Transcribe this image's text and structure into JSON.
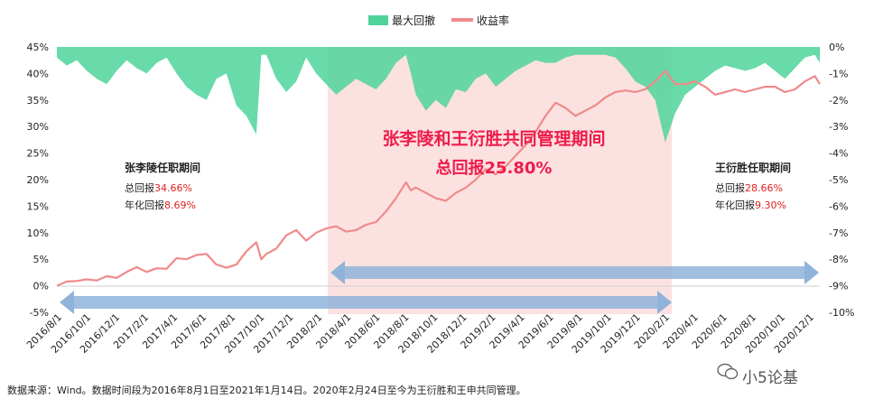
{
  "chart_data": {
    "type": "area+line",
    "legend": [
      {
        "label": "最大回撤",
        "color": "#4fd39a",
        "kind": "area"
      },
      {
        "label": "收益率",
        "color": "#f08a8a",
        "kind": "line"
      }
    ],
    "legend_position": "top-center",
    "y_left": {
      "min": -5,
      "max": 45,
      "ticks": [
        "-5%",
        "0%",
        "5%",
        "10%",
        "15%",
        "20%",
        "25%",
        "30%",
        "35%",
        "40%",
        "45%"
      ]
    },
    "y_right": {
      "min": -10,
      "max": 0,
      "ticks": [
        "0%",
        "-1%",
        "-2%",
        "-3%",
        "-4%",
        "-5%",
        "-6%",
        "-7%",
        "-8%",
        "-9%",
        "-10%"
      ]
    },
    "x_ticks": [
      "2016/8/1",
      "2016/10/1",
      "2016/12/1",
      "2017/2/1",
      "2017/4/1",
      "2017/6/1",
      "2017/8/1",
      "2017/10/1",
      "2017/12/1",
      "2018/2/1",
      "2018/4/1",
      "2018/6/1",
      "2018/8/1",
      "2018/10/1",
      "2018/12/1",
      "2019/2/1",
      "2019/4/1",
      "2019/6/1",
      "2019/8/1",
      "2019/10/1",
      "2019/12/1",
      "2020/2/1",
      "2020/4/1",
      "2020/6/1",
      "2020/8/1",
      "2020/10/1",
      "2020/12/1"
    ],
    "return_series": [
      [
        0,
        0.0
      ],
      [
        1,
        0.8
      ],
      [
        2,
        0.9
      ],
      [
        3,
        1.2
      ],
      [
        4,
        1.0
      ],
      [
        5,
        1.8
      ],
      [
        6,
        1.5
      ],
      [
        7,
        2.6
      ],
      [
        8,
        3.5
      ],
      [
        9,
        2.6
      ],
      [
        10,
        3.3
      ],
      [
        11,
        3.2
      ],
      [
        12,
        5.2
      ],
      [
        13,
        5.0
      ],
      [
        14,
        5.8
      ],
      [
        15,
        6.0
      ],
      [
        16,
        4.0
      ],
      [
        17,
        3.4
      ],
      [
        18,
        4.0
      ],
      [
        19,
        6.5
      ],
      [
        20,
        8.2
      ],
      [
        20.5,
        5.0
      ],
      [
        21,
        6.0
      ],
      [
        22,
        7.0
      ],
      [
        23,
        9.5
      ],
      [
        24,
        10.5
      ],
      [
        25,
        8.5
      ],
      [
        26,
        10.0
      ],
      [
        27,
        10.8
      ],
      [
        28,
        11.2
      ],
      [
        29,
        10.2
      ],
      [
        30,
        10.5
      ],
      [
        31,
        11.5
      ],
      [
        32,
        12.0
      ],
      [
        33,
        14.0
      ],
      [
        34,
        16.5
      ],
      [
        35,
        19.5
      ],
      [
        35.5,
        18.0
      ],
      [
        36,
        18.5
      ],
      [
        37,
        17.5
      ],
      [
        38,
        16.5
      ],
      [
        39,
        16.0
      ],
      [
        40,
        17.5
      ],
      [
        41,
        18.5
      ],
      [
        42,
        20.0
      ],
      [
        43,
        22.0
      ],
      [
        43.5,
        21.5
      ],
      [
        44,
        21.0
      ],
      [
        45,
        22.5
      ],
      [
        46,
        24.5
      ],
      [
        47,
        26.5
      ],
      [
        48,
        29.0
      ],
      [
        49,
        32.0
      ],
      [
        50,
        34.5
      ],
      [
        51,
        33.5
      ],
      [
        52,
        32.0
      ],
      [
        53,
        33.0
      ],
      [
        54,
        34.0
      ],
      [
        55,
        35.5
      ],
      [
        56,
        36.5
      ],
      [
        57,
        36.8
      ],
      [
        58,
        36.5
      ],
      [
        59,
        37.0
      ],
      [
        60,
        38.5
      ],
      [
        61,
        40.5
      ],
      [
        62,
        38.0
      ],
      [
        63,
        38.0
      ],
      [
        64,
        38.5
      ],
      [
        65,
        37.5
      ],
      [
        66,
        36.0
      ],
      [
        67,
        36.5
      ],
      [
        68,
        37.0
      ],
      [
        69,
        36.5
      ],
      [
        70,
        37.0
      ],
      [
        71,
        37.5
      ],
      [
        72,
        37.5
      ],
      [
        73,
        36.5
      ],
      [
        74,
        37.0
      ],
      [
        75,
        38.5
      ],
      [
        76,
        39.5
      ],
      [
        76.5,
        38.0
      ]
    ],
    "drawdown_series": [
      [
        0,
        -0.4
      ],
      [
        1,
        -0.7
      ],
      [
        2,
        -0.5
      ],
      [
        3,
        -0.9
      ],
      [
        4,
        -1.2
      ],
      [
        5,
        -1.4
      ],
      [
        6,
        -0.9
      ],
      [
        7,
        -0.5
      ],
      [
        8,
        -0.8
      ],
      [
        9,
        -1.0
      ],
      [
        10,
        -0.6
      ],
      [
        11,
        -0.4
      ],
      [
        12,
        -1.0
      ],
      [
        13,
        -1.5
      ],
      [
        14,
        -1.8
      ],
      [
        15,
        -2.0
      ],
      [
        16,
        -1.2
      ],
      [
        17,
        -1.0
      ],
      [
        18,
        -2.2
      ],
      [
        19,
        -2.6
      ],
      [
        20,
        -3.3
      ],
      [
        20.5,
        -0.3
      ],
      [
        21,
        -0.3
      ],
      [
        22,
        -1.2
      ],
      [
        23,
        -1.7
      ],
      [
        24,
        -1.3
      ],
      [
        25,
        -0.4
      ],
      [
        26,
        -1.0
      ],
      [
        27,
        -1.4
      ],
      [
        28,
        -1.8
      ],
      [
        29,
        -1.5
      ],
      [
        30,
        -1.2
      ],
      [
        31,
        -1.4
      ],
      [
        32,
        -1.6
      ],
      [
        33,
        -1.2
      ],
      [
        34,
        -0.6
      ],
      [
        35,
        -0.3
      ],
      [
        35.5,
        -1.0
      ],
      [
        36,
        -1.8
      ],
      [
        37,
        -2.4
      ],
      [
        38,
        -2.0
      ],
      [
        39,
        -2.3
      ],
      [
        40,
        -1.6
      ],
      [
        41,
        -1.7
      ],
      [
        42,
        -1.2
      ],
      [
        43,
        -1.0
      ],
      [
        44,
        -1.5
      ],
      [
        45,
        -1.2
      ],
      [
        46,
        -0.9
      ],
      [
        47,
        -0.7
      ],
      [
        48,
        -0.5
      ],
      [
        49,
        -0.6
      ],
      [
        50,
        -0.6
      ],
      [
        51,
        -0.4
      ],
      [
        52,
        -0.3
      ],
      [
        53,
        -0.3
      ],
      [
        54,
        -0.3
      ],
      [
        55,
        -0.3
      ],
      [
        56,
        -0.4
      ],
      [
        57,
        -0.8
      ],
      [
        58,
        -1.3
      ],
      [
        59,
        -1.5
      ],
      [
        60,
        -2.0
      ],
      [
        61,
        -3.6
      ],
      [
        62,
        -2.5
      ],
      [
        63,
        -1.8
      ],
      [
        64,
        -1.5
      ],
      [
        65,
        -1.2
      ],
      [
        66,
        -0.9
      ],
      [
        67,
        -0.7
      ],
      [
        68,
        -0.8
      ],
      [
        69,
        -0.9
      ],
      [
        70,
        -0.8
      ],
      [
        71,
        -0.6
      ],
      [
        72,
        -0.9
      ],
      [
        73,
        -1.2
      ],
      [
        74,
        -0.8
      ],
      [
        75,
        -0.4
      ],
      [
        76,
        -0.3
      ],
      [
        76.5,
        -0.6
      ]
    ],
    "periods": [
      {
        "name": "张李陵任职期间",
        "total_label": "总回报",
        "total_value": "34.66%",
        "annual_label": "年化回报",
        "annual_value": "8.69%"
      },
      {
        "name": "王衍胜任职期间",
        "total_label": "总回报",
        "total_value": "28.66%",
        "annual_label": "年化回报",
        "annual_value": "9.30%"
      }
    ],
    "joint_period": {
      "line1": "张李陵和王衍胜共同管理期间",
      "line2": "总回报25.80%"
    }
  },
  "footer_note": "数据来源：Wind。数据时间段为2016年8月1日至2021年1月14日。2020年2月24日至今为王衍胜和王申共同管理。",
  "watermark": "小5论基"
}
